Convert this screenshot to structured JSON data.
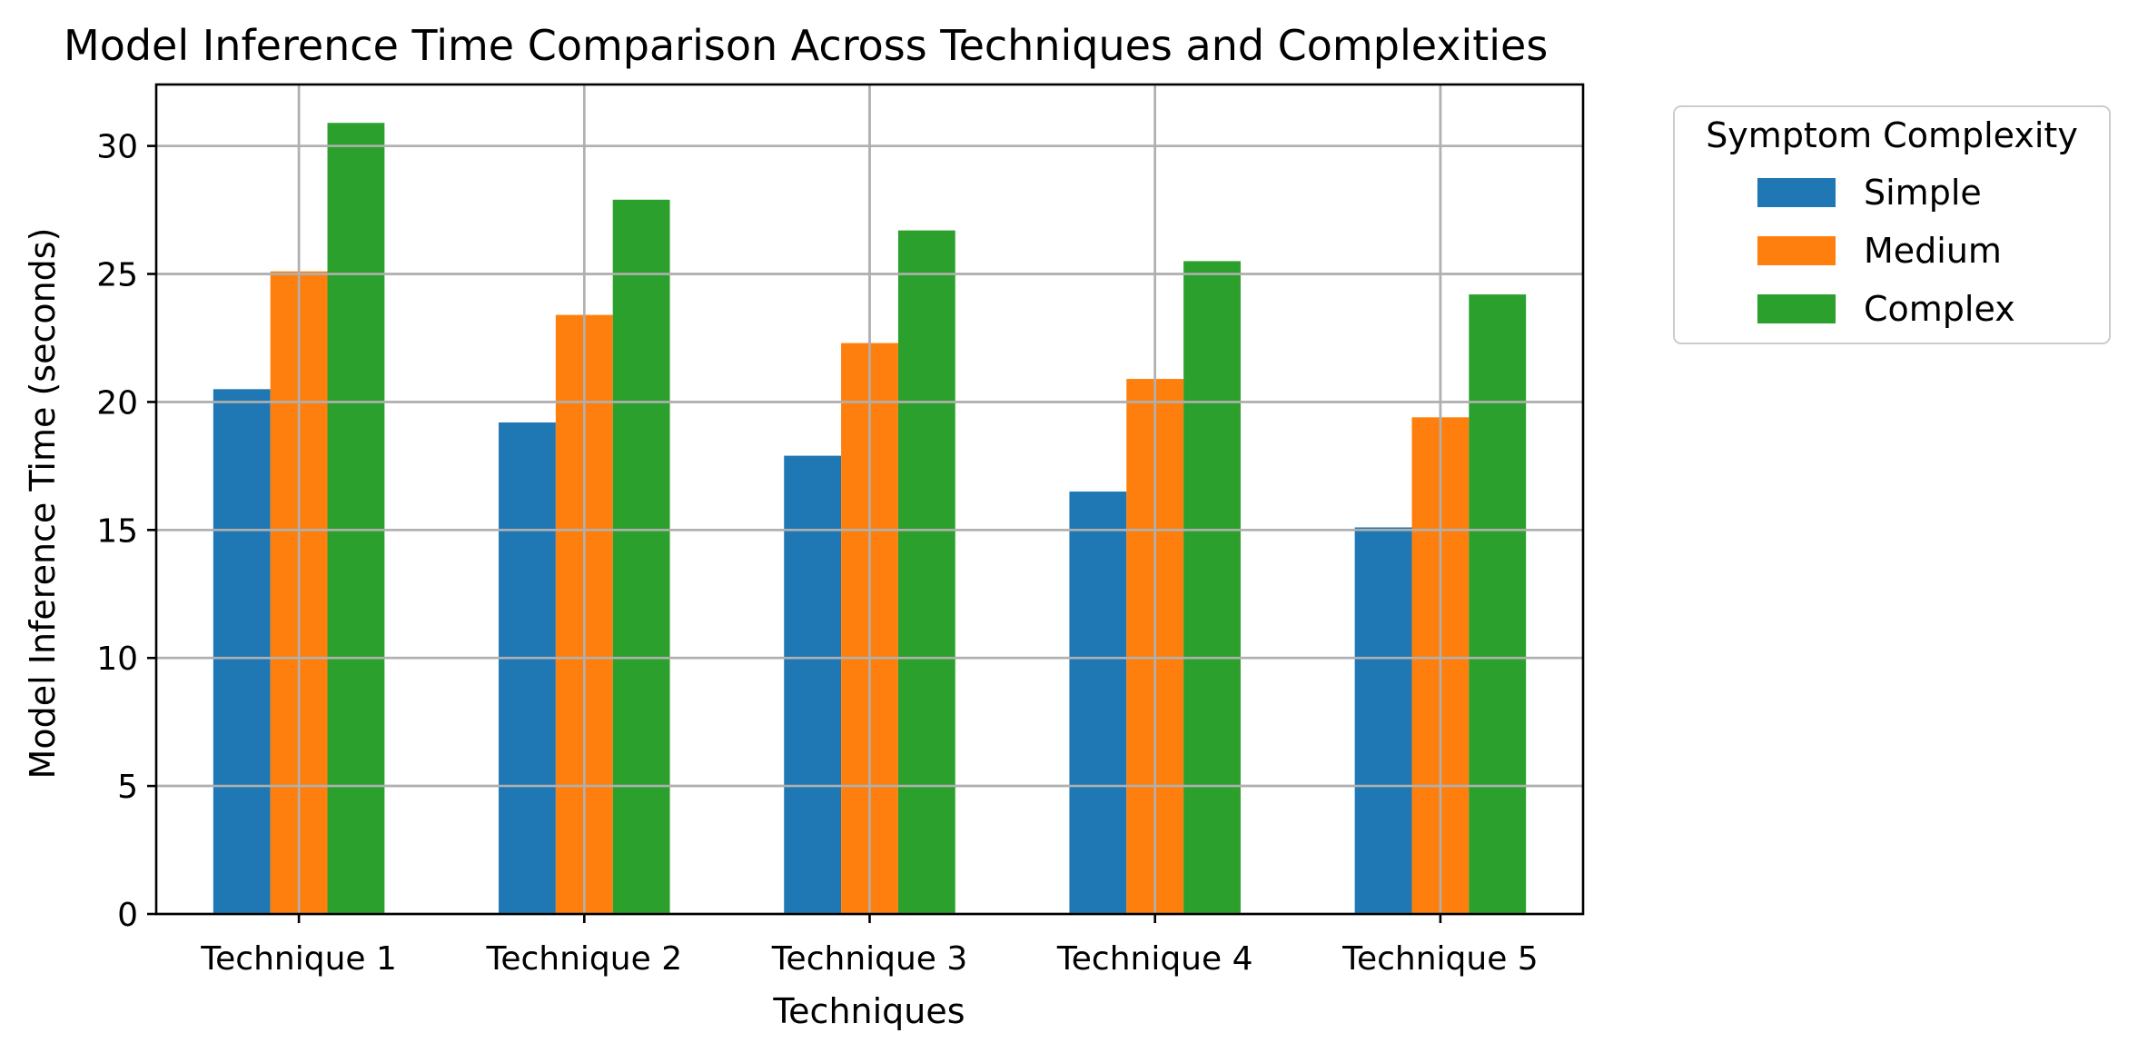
{
  "chart_data": {
    "type": "bar",
    "title": "Model Inference Time Comparison Across Techniques and Complexities",
    "xlabel": "Techniques",
    "ylabel": "Model Inference Time (seconds)",
    "categories": [
      "Technique 1",
      "Technique 2",
      "Technique 3",
      "Technique 4",
      "Technique 5"
    ],
    "series": [
      {
        "name": "Simple",
        "color": "#1f77b4",
        "values": [
          20.5,
          19.2,
          17.9,
          16.5,
          15.1
        ]
      },
      {
        "name": "Medium",
        "color": "#ff7f0e",
        "values": [
          25.1,
          23.4,
          22.3,
          20.9,
          19.4
        ]
      },
      {
        "name": "Complex",
        "color": "#2ca02c",
        "values": [
          30.9,
          27.9,
          26.7,
          25.5,
          24.2
        ]
      }
    ],
    "ylim": [
      0,
      32.4
    ],
    "yticks": [
      0,
      5,
      10,
      15,
      20,
      25,
      30
    ],
    "grid": true,
    "legend": {
      "title": "Symptom Complexity",
      "placement": "outside-top-right"
    }
  }
}
